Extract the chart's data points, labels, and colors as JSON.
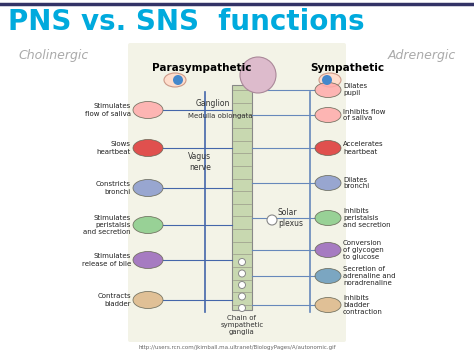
{
  "title": "PNS vs. SNS  functions",
  "title_color": "#00AADD",
  "title_fontsize": 20,
  "title_bold": true,
  "background_color": "#FFFFFF",
  "left_header": "Cholinergic",
  "right_header": "Adrenergic",
  "left_header_color": "#AAAAAA",
  "right_header_color": "#AAAAAA",
  "left_sub_header": "Parasympathetic",
  "right_sub_header": "Sympathetic",
  "left_sub_color": "#000000",
  "right_sub_color": "#000000",
  "left_items": [
    "Stimulates\nflow of saliva",
    "Slows\nheartbeat",
    "Constricts\nbronchi",
    "Stimulates\nperistalsis\nand secretion",
    "Stimulates\nrelease of bile",
    "Contracts\nbladder"
  ],
  "right_items": [
    "Dilates\npupil",
    "Inhibits flow\nof saliva",
    "Accelerates\nheartbeat",
    "Dilates\nbronchi",
    "Inhibits\nperistalsis\nand secretion",
    "Conversion\nof glycogen\nto glucose",
    "Secretion of\nadrenaline and\nnoradrenaline",
    "Inhibits\nbladder\ncontraction"
  ],
  "url_text": "http://users.rcn.com/jkimball.ma.ultranet/BiologyPages/A/autonomic.gif",
  "panel_bg": "#E8E8D0",
  "panel_alpha": 0.5,
  "border_color": "#333366",
  "line_color_left": "#4466AA",
  "line_color_right": "#6688BB"
}
